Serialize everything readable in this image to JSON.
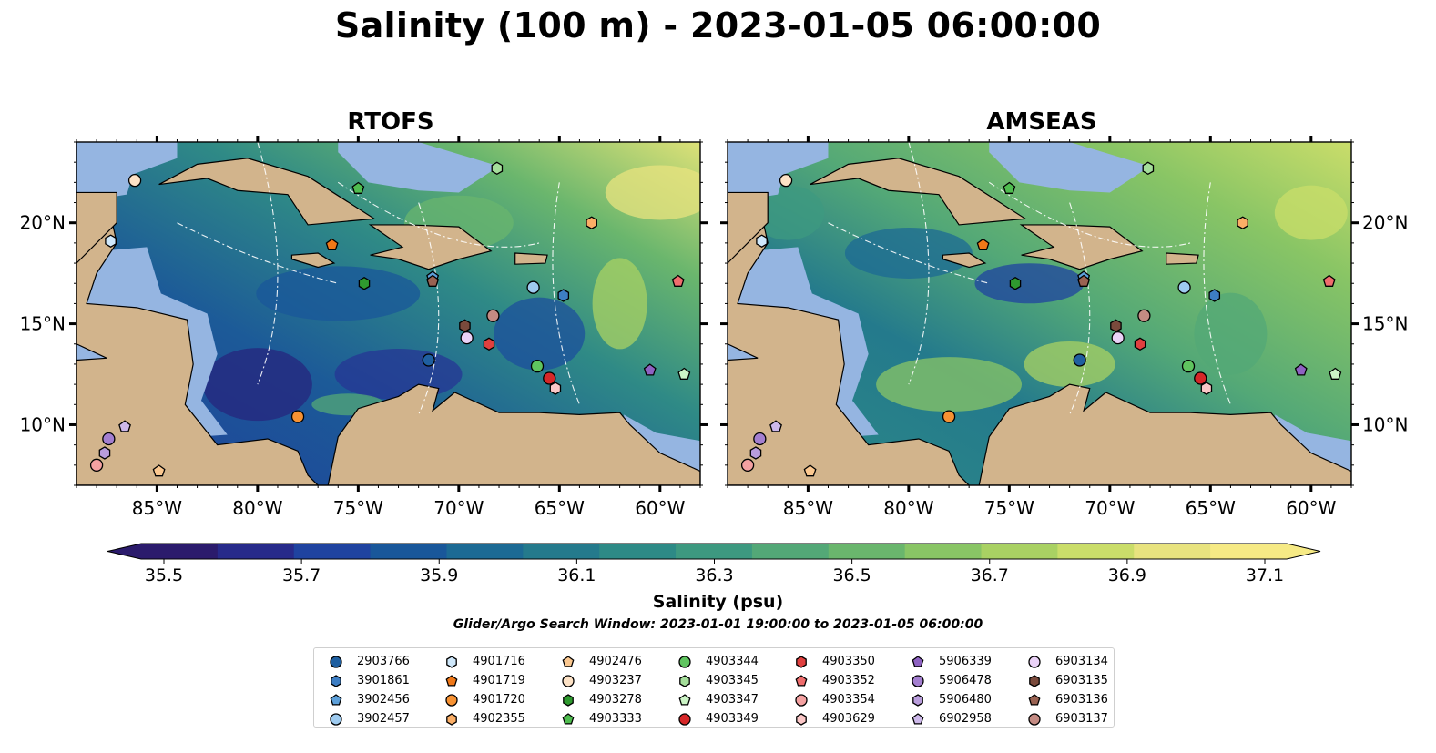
{
  "figure": {
    "title": "Salinity (100 m) - 2023-01-05 06:00:00",
    "panels": [
      {
        "title": "RTOFS"
      },
      {
        "title": "AMSEAS"
      }
    ],
    "colorbar": {
      "label": "Salinity (psu)",
      "ticks": [
        "35.5",
        "35.7",
        "35.9",
        "36.1",
        "36.3",
        "36.5",
        "36.7",
        "36.9",
        "37.1"
      ],
      "subtitle": "Glider/Argo Search Window: 2023-01-01 19:00:00 to 2023-01-05 06:00:00"
    },
    "axis": {
      "lat_ticks": [
        "10°N",
        "15°N",
        "20°N"
      ],
      "lon_ticks": [
        "85°W",
        "80°W",
        "75°W",
        "70°W",
        "65°W",
        "60°W"
      ]
    },
    "colors": {
      "land": "#d2b48c",
      "shelf": "#95b5e1",
      "colormap": [
        "#2b1b6c",
        "#272a8a",
        "#1f43a0",
        "#19579a",
        "#1c6a94",
        "#247a8c",
        "#2d8a86",
        "#3d9980",
        "#53a877",
        "#6ab66d",
        "#89c565",
        "#a9d163",
        "#cadd6a",
        "#e8e37f",
        "#f6ea85"
      ]
    }
  },
  "chart_data": {
    "type": "scatter",
    "title": "Salinity (100 m) - 2023-01-05 06:00:00",
    "xlim": [
      -89,
      -58
    ],
    "ylim": [
      7,
      24
    ],
    "colorbar_range": [
      35.5,
      37.1
    ],
    "colorbar_label": "Salinity (psu)",
    "series": [
      {
        "name": "2903766",
        "marker": "circle",
        "color": "#1f5fa0",
        "x": -71.5,
        "y": 13.2
      },
      {
        "name": "3901861",
        "marker": "hexagon",
        "color": "#3d7ec4",
        "x": -64.8,
        "y": 16.4
      },
      {
        "name": "3902456",
        "marker": "pentagon",
        "color": "#5da0da",
        "x": -71.3,
        "y": 17.3
      },
      {
        "name": "3902457",
        "marker": "circle",
        "color": "#9ecbf0",
        "x": -66.3,
        "y": 16.8
      },
      {
        "name": "4901716",
        "marker": "hexagon",
        "color": "#cfe8fb",
        "x": -87.3,
        "y": 19.1
      },
      {
        "name": "4901719",
        "marker": "pentagon",
        "color": "#f07818",
        "x": -76.3,
        "y": 18.9
      },
      {
        "name": "4901720",
        "marker": "circle",
        "color": "#f79233",
        "x": -78.0,
        "y": 10.4
      },
      {
        "name": "4902355",
        "marker": "hexagon",
        "color": "#fbae66",
        "x": -63.4,
        "y": 20.0
      },
      {
        "name": "4902476",
        "marker": "pentagon",
        "color": "#fbc890",
        "x": -84.9,
        "y": 7.7
      },
      {
        "name": "4903237",
        "marker": "circle",
        "color": "#fde2c6",
        "x": -86.1,
        "y": 22.1
      },
      {
        "name": "4903278",
        "marker": "hexagon",
        "color": "#2f9a2f",
        "x": -74.7,
        "y": 17.0
      },
      {
        "name": "4903333",
        "marker": "pentagon",
        "color": "#4fbd4f",
        "x": -75.0,
        "y": 21.7
      },
      {
        "name": "4903344",
        "marker": "circle",
        "color": "#5fc45f",
        "x": -66.1,
        "y": 12.9
      },
      {
        "name": "4903345",
        "marker": "hexagon",
        "color": "#a4de9a",
        "x": -68.1,
        "y": 22.7
      },
      {
        "name": "4903347",
        "marker": "pentagon",
        "color": "#ccf5c6",
        "x": -58.8,
        "y": 12.5
      },
      {
        "name": "4903349",
        "marker": "circle",
        "color": "#d62728",
        "x": -65.5,
        "y": 12.3
      },
      {
        "name": "4903350",
        "marker": "hexagon",
        "color": "#e0403f",
        "x": -68.5,
        "y": 14.0
      },
      {
        "name": "4903352",
        "marker": "pentagon",
        "color": "#ef6d6d",
        "x": -59.1,
        "y": 17.1
      },
      {
        "name": "4903354",
        "marker": "circle",
        "color": "#f4a1a1",
        "x": -88.0,
        "y": 8.0
      },
      {
        "name": "4903629",
        "marker": "hexagon",
        "color": "#fbc7c7",
        "x": -65.2,
        "y": 11.8
      },
      {
        "name": "5906339",
        "marker": "pentagon",
        "color": "#8e62c2",
        "x": -60.5,
        "y": 12.7
      },
      {
        "name": "5906478",
        "marker": "circle",
        "color": "#a47fd0",
        "x": -87.4,
        "y": 9.3
      },
      {
        "name": "5906480",
        "marker": "hexagon",
        "color": "#b99ddc",
        "x": -87.6,
        "y": 8.6
      },
      {
        "name": "6902958",
        "marker": "pentagon",
        "color": "#cdb8ea",
        "x": -86.6,
        "y": 9.9
      },
      {
        "name": "6903134",
        "marker": "circle",
        "color": "#ead2f7",
        "x": -69.6,
        "y": 14.3
      },
      {
        "name": "6903135",
        "marker": "hexagon",
        "color": "#7a4a3c",
        "x": -69.7,
        "y": 14.9
      },
      {
        "name": "6903136",
        "marker": "pentagon",
        "color": "#9a6252",
        "x": -71.3,
        "y": 17.1
      },
      {
        "name": "6903137",
        "marker": "circle",
        "color": "#c48b83",
        "x": -68.3,
        "y": 15.4
      }
    ]
  }
}
